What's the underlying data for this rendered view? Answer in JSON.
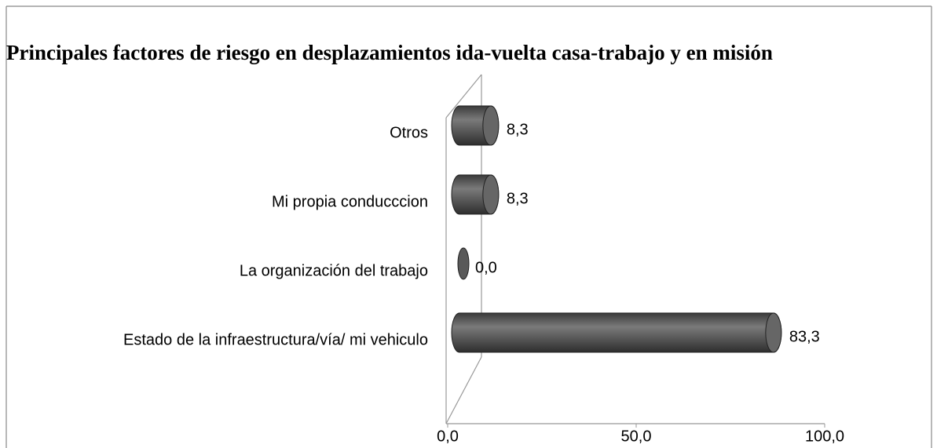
{
  "chart_data": {
    "type": "bar",
    "orientation": "horizontal",
    "title": "Principales factores de riesgo en desplazamientos ida-vuelta casa-trabajo y en misión",
    "categories": [
      "Otros",
      "Mi propia conducccion",
      "La organización del trabajo",
      "Estado de la infraestructura/vía/ mi vehiculo"
    ],
    "values": [
      8.3,
      8.3,
      0.0,
      83.3
    ],
    "value_labels": [
      "8,3",
      "8,3",
      "0,0",
      "83,3"
    ],
    "color": "#595959",
    "xlim": [
      0,
      100
    ],
    "xticks": [
      {
        "value": 0,
        "label": "0,0"
      },
      {
        "value": 50,
        "label": "50,0"
      },
      {
        "value": 100,
        "label": "100,0"
      }
    ],
    "grid": false
  }
}
